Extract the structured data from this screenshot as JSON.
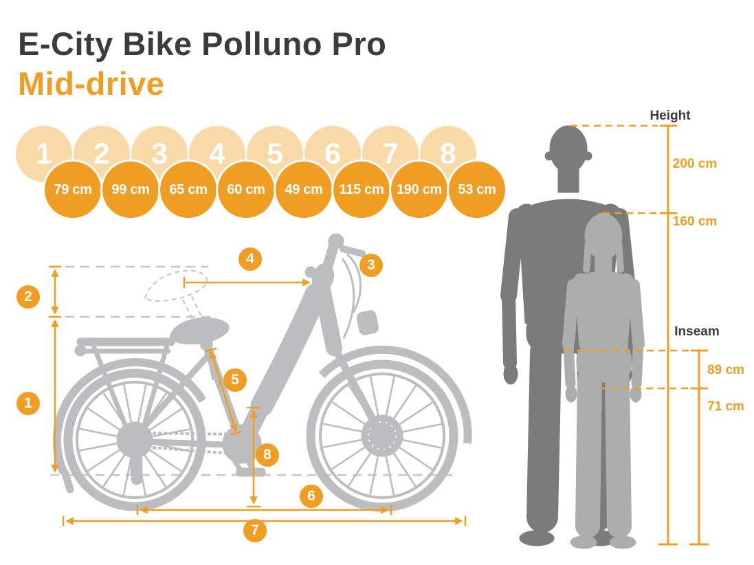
{
  "header": {
    "title": "E-City Bike Polluno Pro",
    "subtitle": "Mid-drive"
  },
  "badges": [
    {
      "num": "1",
      "value": "79 cm"
    },
    {
      "num": "2",
      "value": "99 cm"
    },
    {
      "num": "3",
      "value": "65 cm"
    },
    {
      "num": "4",
      "value": "60 cm"
    },
    {
      "num": "5",
      "value": "49 cm"
    },
    {
      "num": "6",
      "value": "115 cm"
    },
    {
      "num": "7",
      "value": "190 cm"
    },
    {
      "num": "8",
      "value": "53 cm"
    }
  ],
  "bike_markers": [
    "1",
    "2",
    "3",
    "4",
    "5",
    "6",
    "7",
    "8"
  ],
  "rider_fit": {
    "height_label": "Height",
    "inseam_label": "Inseam",
    "max_height": "200 cm",
    "min_height": "160 cm",
    "max_inseam": "89 cm",
    "min_inseam": "71 cm"
  },
  "colors": {
    "accent": "#F09D23",
    "accent_light": "#F8D9A7",
    "heading": "#3B3B3D",
    "bike_silhouette": "#BBBDBF",
    "figure_dark": "#7B7B7B",
    "figure_light": "#ADADAD",
    "reference_dash": "#C6C6C6"
  }
}
